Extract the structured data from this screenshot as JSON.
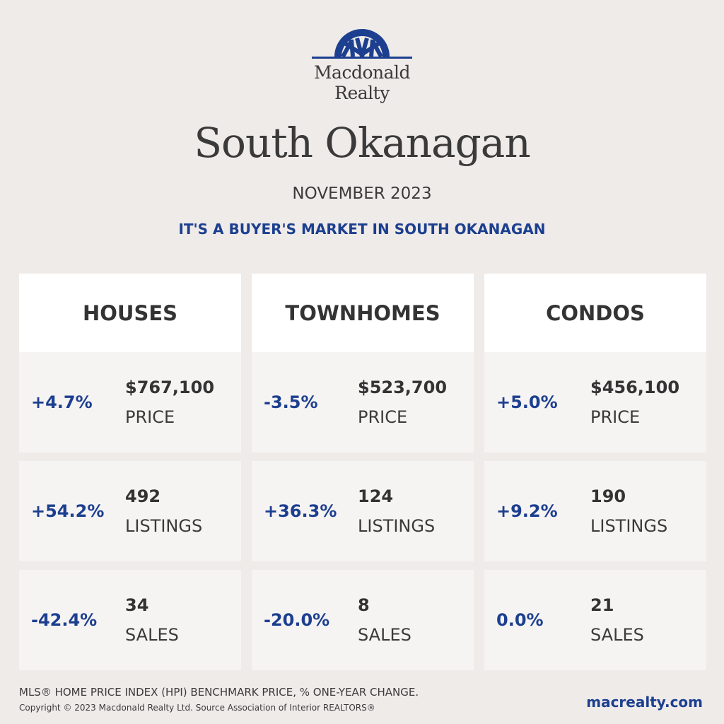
{
  "brand": {
    "line1": "Macdonald",
    "line2": "Realty",
    "logo_icon": "sun-rays-logo-icon",
    "accent": "#1c3f8f"
  },
  "title": "South Okanagan",
  "date": "NOVEMBER 2023",
  "headline": "IT'S A BUYER'S MARKET IN SOUTH OKANAGAN",
  "columns": [
    {
      "header": "HOUSES",
      "stats": [
        {
          "change": "+4.7%",
          "value": "$767,100",
          "label": "PRICE"
        },
        {
          "change": "+54.2%",
          "value": "492",
          "label": "LISTINGS"
        },
        {
          "change": "-42.4%",
          "value": "34",
          "label": "SALES"
        }
      ]
    },
    {
      "header": "TOWNHOMES",
      "stats": [
        {
          "change": "-3.5%",
          "value": "$523,700",
          "label": "PRICE"
        },
        {
          "change": "+36.3%",
          "value": "124",
          "label": "LISTINGS"
        },
        {
          "change": "-20.0%",
          "value": "8",
          "label": "SALES"
        }
      ]
    },
    {
      "header": "CONDOS",
      "stats": [
        {
          "change": "+5.0%",
          "value": "$456,100",
          "label": "PRICE"
        },
        {
          "change": "+9.2%",
          "value": "190",
          "label": "LISTINGS"
        },
        {
          "change": "0.0%",
          "value": "21",
          "label": "SALES"
        }
      ]
    }
  ],
  "footer": {
    "note": "MLS® HOME PRICE INDEX (HPI) BENCHMARK PRICE, % ONE-YEAR CHANGE.",
    "copyright": "Copyright © 2023 Macdonald Realty Ltd. Source Association of Interior REALTORS®",
    "site": "macrealty.com"
  }
}
